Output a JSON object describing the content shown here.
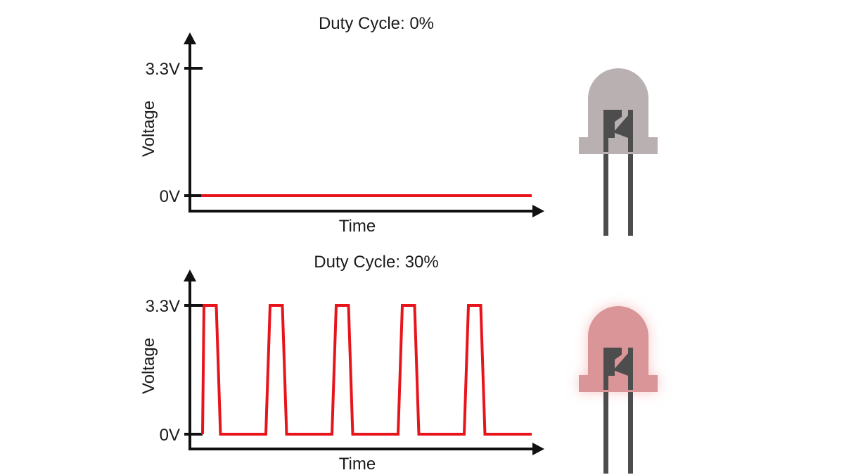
{
  "colors": {
    "signal": "#e8141c",
    "axis": "#111111",
    "led_off": "#b9b0b2",
    "led_on": "#d99597",
    "led_glow": "#f7c6c8",
    "lead": "#4d4d4d"
  },
  "panels": [
    {
      "title": "Duty Cycle: 0%",
      "y_axis_label": "Voltage",
      "x_axis_label": "Time",
      "tick_high": "3.3V",
      "tick_low": "0V",
      "duty_cycle": 0,
      "periods": 0,
      "led_state": "off"
    },
    {
      "title": "Duty Cycle: 30%",
      "y_axis_label": "Voltage",
      "x_axis_label": "Time",
      "tick_high": "3.3V",
      "tick_low": "0V",
      "duty_cycle": 0.3,
      "periods": 5,
      "led_state": "on"
    }
  ]
}
